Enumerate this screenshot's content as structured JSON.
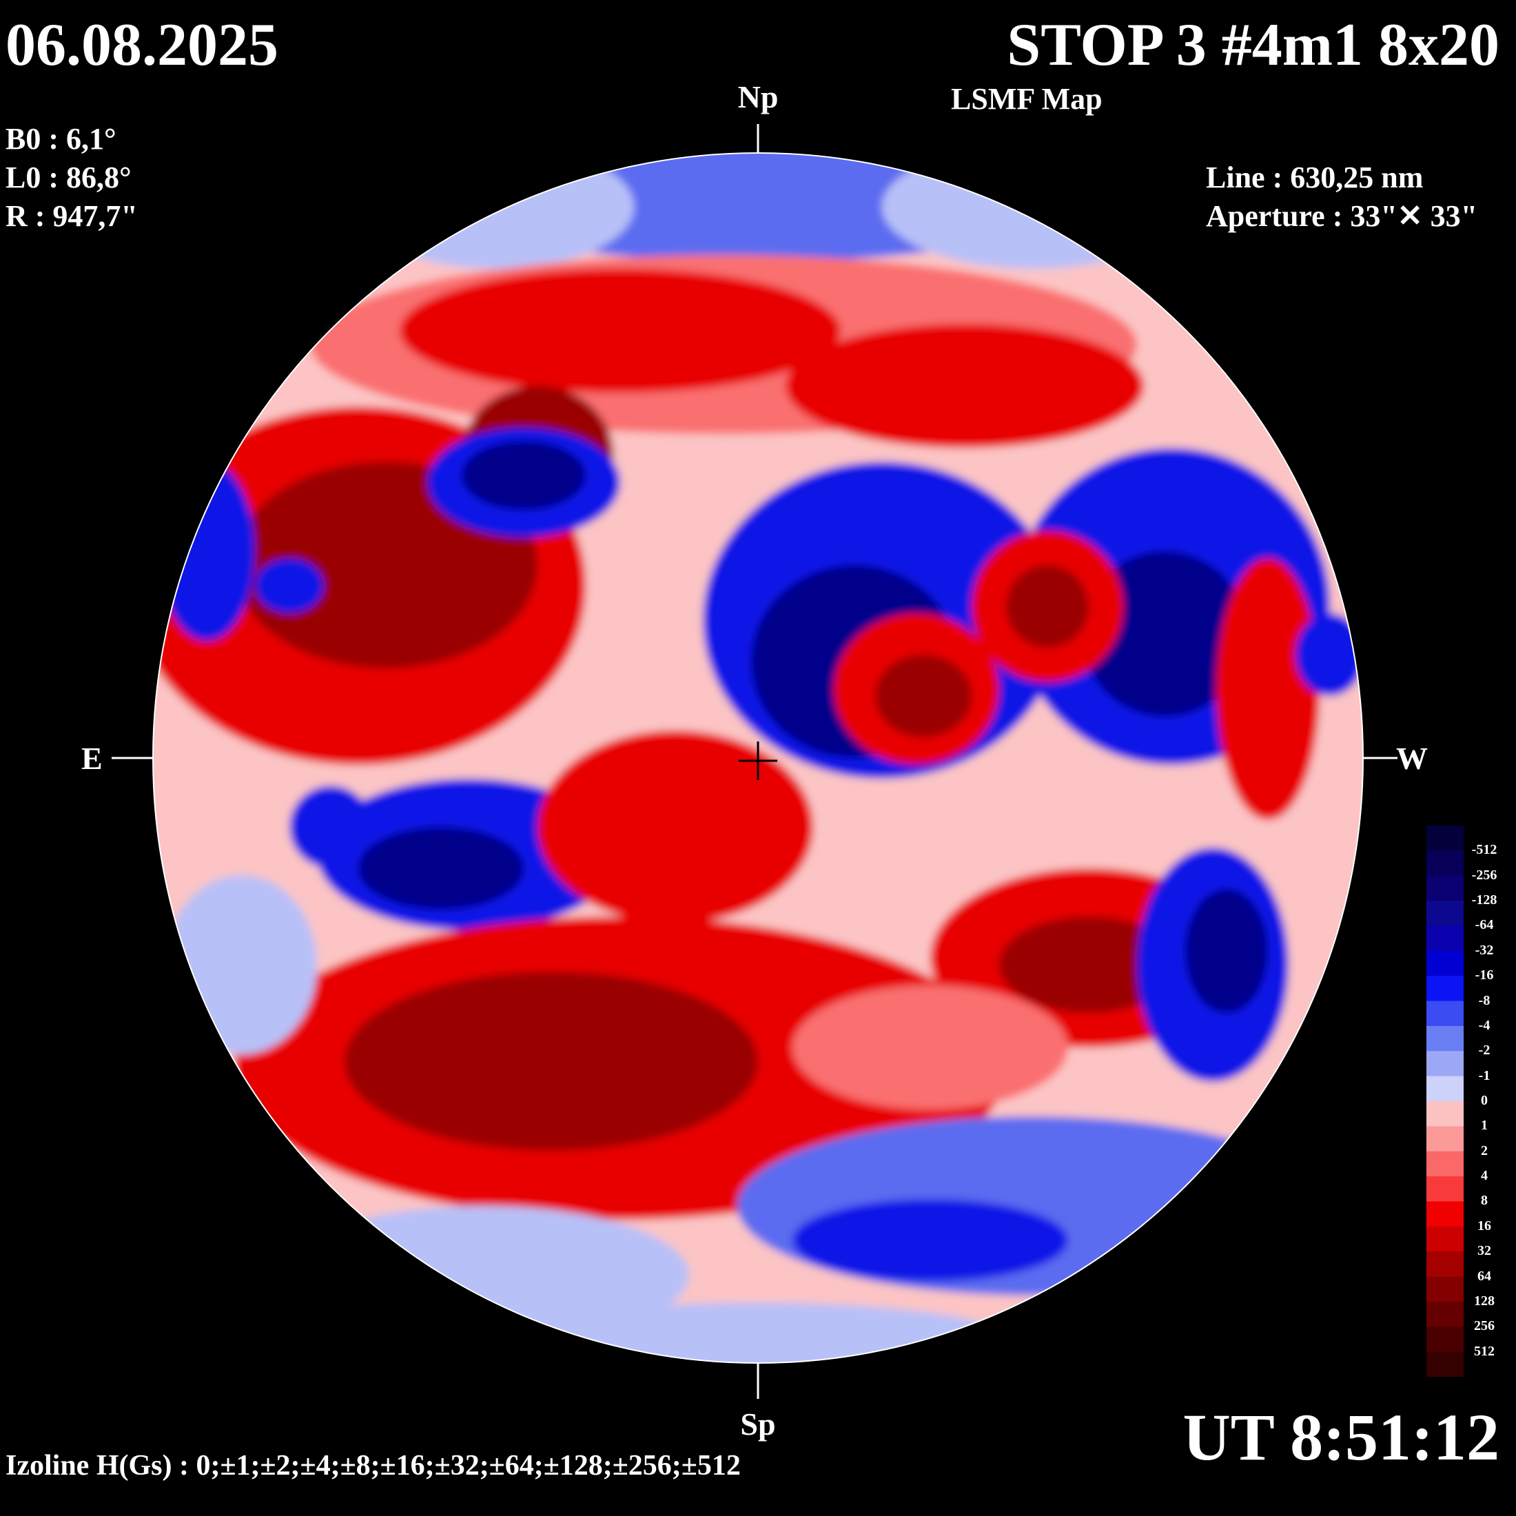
{
  "header": {
    "date": "06.08.2025",
    "title": "STOP 3 #4m1 8x20",
    "subtitle": "LSMF  Map"
  },
  "params": {
    "b0": "B0 : 6,1°",
    "l0": "L0 : 86,8°",
    "r": "R  : 947,7\"",
    "line": "Line :  630,25 nm",
    "aperture": "Aperture : 33\"✕ 33\""
  },
  "axes": {
    "north": "Np",
    "south": "Sp",
    "east": "E",
    "west": "W"
  },
  "footer": {
    "time": "UT 8:51:12",
    "izoline": "Izoline H(Gs) : 0;±1;±2;±4;±8;±16;±32;±64;±128;±256;±512"
  },
  "colorbar": {
    "labels": [
      "-512",
      "-256",
      "-128",
      "-64",
      "-32",
      "-16",
      "-8",
      "-4",
      "-2",
      "-1",
      "0",
      "1",
      "2",
      "4",
      "8",
      "16",
      "32",
      "64",
      "128",
      "256",
      "512"
    ],
    "colors": [
      "#04003c",
      "#080058",
      "#0a0072",
      "#0c0890",
      "#0a00ae",
      "#0000d2",
      "#0a14f4",
      "#3a4cf2",
      "#6a7ef4",
      "#9ca8f6",
      "#ccd2fa",
      "#fcc2c2",
      "#fc9a9a",
      "#fa6868",
      "#f83a3a",
      "#f00000",
      "#cc0000",
      "#a40000",
      "#840000",
      "#640000",
      "#4a0000",
      "#340000"
    ]
  },
  "field_colors": {
    "neg_strong": "#00008a",
    "neg_mid": "#0a14e6",
    "neg_weak": "#5c6cf0",
    "neg_faint": "#b8c0f8",
    "pos_faint": "#fcc4c4",
    "pos_weak": "#fa7070",
    "pos_mid": "#e80000",
    "pos_strong": "#9a0000",
    "izoline": "#ffffff"
  }
}
